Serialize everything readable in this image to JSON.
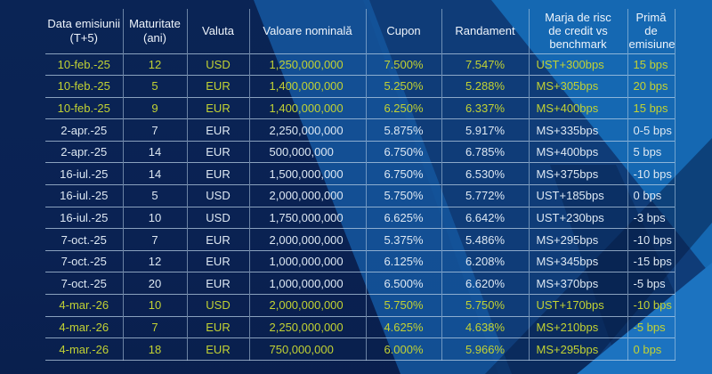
{
  "table": {
    "columns": [
      {
        "key": "issue-date",
        "label": "Data emisiunii\n(T+5)"
      },
      {
        "key": "maturity",
        "label": "Maturitate\n(ani)"
      },
      {
        "key": "currency",
        "label": "Valuta"
      },
      {
        "key": "nominal-value",
        "label": "Valoare nominală"
      },
      {
        "key": "coupon",
        "label": "Cupon"
      },
      {
        "key": "yield",
        "label": "Randament"
      },
      {
        "key": "credit-spread",
        "label": "Marja de risc\nde credit vs\nbenchmark"
      },
      {
        "key": "issue-premium",
        "label": "Primă de\nemisiune"
      }
    ],
    "rows": [
      {
        "highlight": true,
        "cells": [
          "10-feb.-25",
          "12",
          "USD",
          "1,250,000,000",
          "7.500%",
          "7.547%",
          "UST+300bps",
          "15 bps"
        ]
      },
      {
        "highlight": true,
        "cells": [
          "10-feb.-25",
          "5",
          "EUR",
          "1,400,000,000",
          "5.250%",
          "5.288%",
          "MS+305bps",
          "20 bps"
        ]
      },
      {
        "highlight": true,
        "cells": [
          "10-feb.-25",
          "9",
          "EUR",
          "1,400,000,000",
          "6.250%",
          "6.337%",
          "MS+400bps",
          "15 bps"
        ]
      },
      {
        "highlight": false,
        "cells": [
          "2-apr.-25",
          "7",
          "EUR",
          "2,250,000,000",
          "5.875%",
          "5.917%",
          "MS+335bps",
          "0-5 bps"
        ]
      },
      {
        "highlight": false,
        "cells": [
          "2-apr.-25",
          "14",
          "EUR",
          "500,000,000",
          "6.750%",
          "6.785%",
          "MS+400bps",
          "5 bps"
        ]
      },
      {
        "highlight": false,
        "cells": [
          "16-iul.-25",
          "14",
          "EUR",
          "1,500,000,000",
          "6.750%",
          "6.530%",
          "MS+375bps",
          "-10 bps"
        ]
      },
      {
        "highlight": false,
        "cells": [
          "16-iul.-25",
          "5",
          "USD",
          "2,000,000,000",
          "5.750%",
          "5.772%",
          "UST+185bps",
          "0 bps"
        ]
      },
      {
        "highlight": false,
        "cells": [
          "16-iul.-25",
          "10",
          "USD",
          "1,750,000,000",
          "6.625%",
          "6.642%",
          "UST+230bps",
          "-3 bps"
        ]
      },
      {
        "highlight": false,
        "cells": [
          "7-oct.-25",
          "7",
          "EUR",
          "2,000,000,000",
          "5.375%",
          "5.486%",
          "MS+295bps",
          "-10 bps"
        ]
      },
      {
        "highlight": false,
        "cells": [
          "7-oct.-25",
          "12",
          "EUR",
          "1,000,000,000",
          "6.125%",
          "6.208%",
          "MS+345bps",
          "-15 bps"
        ]
      },
      {
        "highlight": false,
        "cells": [
          "7-oct.-25",
          "20",
          "EUR",
          "1,000,000,000",
          "6.500%",
          "6.620%",
          "MS+370bps",
          "-5 bps"
        ]
      },
      {
        "highlight": true,
        "cells": [
          "4-mar.-26",
          "10",
          "USD",
          "2,000,000,000",
          "5.750%",
          "5.750%",
          "UST+170bps",
          "-10 bps"
        ]
      },
      {
        "highlight": true,
        "cells": [
          "4-mar.-26",
          "7",
          "EUR",
          "2,250,000,000",
          "4.625%",
          "4.638%",
          "MS+210bps",
          "-5 bps"
        ]
      },
      {
        "highlight": true,
        "cells": [
          "4-mar.-26",
          "18",
          "EUR",
          "750,000,000",
          "6.000%",
          "5.966%",
          "MS+295bps",
          "0 bps"
        ]
      }
    ]
  },
  "colors": {
    "background_navy": "#0a2354",
    "band_bright_blue": "#1568b2",
    "band_medium_blue": "#0f3c78",
    "highlight_text": "#c2d233",
    "normal_text": "#dde8f3",
    "header_text": "#eef4fb",
    "grid_line": "#bcd3e8"
  }
}
